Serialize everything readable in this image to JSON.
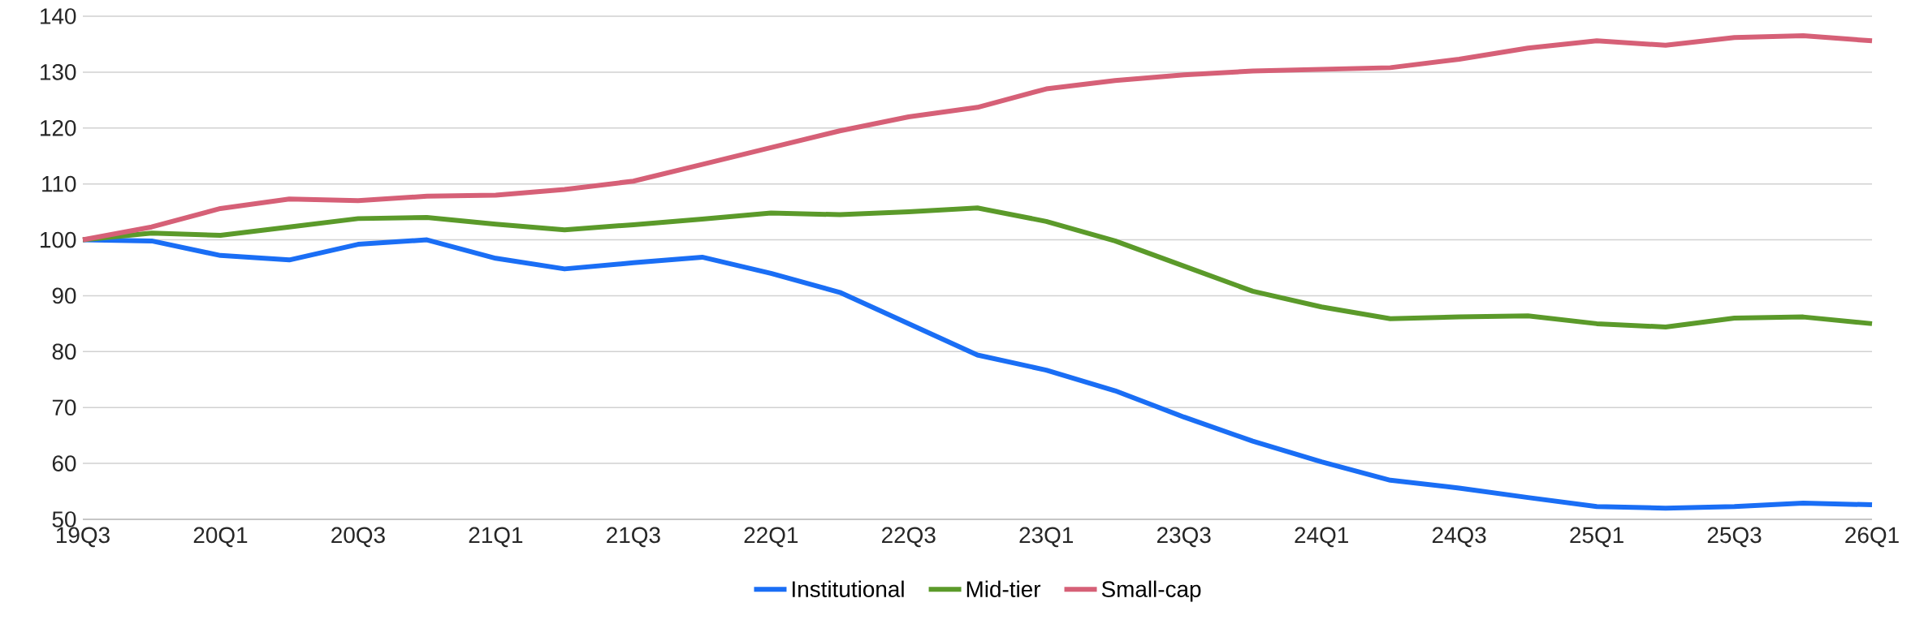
{
  "chart_data": {
    "type": "line",
    "categories": [
      "19Q3",
      null,
      "20Q1",
      null,
      "20Q3",
      null,
      "21Q1",
      null,
      "21Q3",
      null,
      "22Q1",
      null,
      "22Q3",
      null,
      "23Q1",
      null,
      "23Q3",
      null,
      "24Q1",
      null,
      "24Q3",
      null,
      "25Q1",
      null,
      "25Q3",
      null,
      "26Q1"
    ],
    "series": [
      {
        "name": "Institutional",
        "color": "#1a6ef5",
        "values": [
          100,
          99.8,
          97.2,
          96.4,
          99.2,
          100,
          96.7,
          94.8,
          95.9,
          96.9,
          94,
          90.6,
          85,
          79.4,
          76.7,
          73,
          68.3,
          64,
          60.3,
          57,
          55.6,
          53.9,
          52.3,
          52,
          52.3,
          52.9,
          52.6
        ]
      },
      {
        "name": "Mid-tier",
        "color": "#5b9a2a",
        "values": [
          100,
          101.2,
          100.8,
          102.3,
          103.8,
          104,
          102.8,
          101.8,
          102.7,
          103.7,
          104.8,
          104.5,
          105,
          105.7,
          103.3,
          99.8,
          95.3,
          90.8,
          88,
          85.9,
          86.2,
          86.4,
          85,
          84.4,
          86,
          86.2,
          85
        ]
      },
      {
        "name": "Small-cap",
        "color": "#d66077",
        "values": [
          100,
          102.3,
          105.6,
          107.3,
          107,
          107.8,
          108,
          109,
          110.5,
          113.5,
          116.5,
          119.5,
          122,
          123.7,
          127,
          128.5,
          129.5,
          130.2,
          130.5,
          130.8,
          132.3,
          134.3,
          135.6,
          134.8,
          136.2,
          136.5,
          135.6
        ]
      }
    ],
    "ylim": [
      50,
      140
    ],
    "yticks": [
      50,
      60,
      70,
      80,
      90,
      100,
      110,
      120,
      130,
      140
    ],
    "grid": "y",
    "legend": "bottom"
  }
}
